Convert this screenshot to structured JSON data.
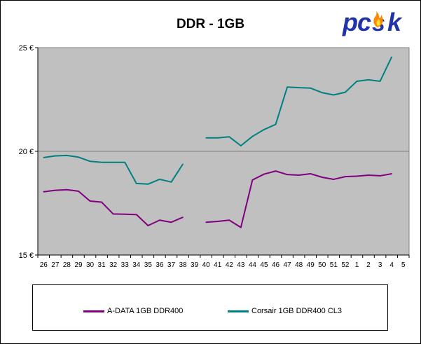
{
  "chart_data": {
    "type": "line",
    "title": "DDR - 1GB",
    "xlabel": "",
    "ylabel": "",
    "categories": [
      "26",
      "27",
      "28",
      "29",
      "30",
      "31",
      "32",
      "33",
      "34",
      "35",
      "36",
      "37",
      "38",
      "39",
      "40",
      "41",
      "42",
      "43",
      "44",
      "45",
      "46",
      "47",
      "48",
      "49",
      "50",
      "51",
      "52",
      "1",
      "2",
      "3",
      "4",
      "5"
    ],
    "yticks": [
      "15 €",
      "20 €",
      "25 €"
    ],
    "ytick_values": [
      15,
      20,
      25
    ],
    "ylim": [
      15,
      25
    ],
    "grid": "horizontal major",
    "legend_position": "bottom",
    "series": [
      {
        "name": "A-DATA 1GB DDR400",
        "color": "#800080",
        "values": [
          18.05,
          18.12,
          18.15,
          18.08,
          17.6,
          17.55,
          16.98,
          16.97,
          16.95,
          16.42,
          16.68,
          16.58,
          16.82,
          null,
          16.58,
          16.62,
          16.68,
          16.33,
          18.62,
          18.9,
          19.05,
          18.88,
          18.85,
          18.92,
          18.75,
          18.65,
          18.78,
          18.8,
          18.85,
          18.82,
          18.92,
          null
        ]
      },
      {
        "name": "Corsair 1GB DDR400 CL3",
        "color": "#008080",
        "values": [
          19.7,
          19.78,
          19.8,
          19.72,
          19.52,
          19.47,
          19.47,
          19.47,
          18.45,
          18.42,
          18.65,
          18.52,
          19.38,
          null,
          20.65,
          20.65,
          20.7,
          20.27,
          20.72,
          21.05,
          21.3,
          23.1,
          23.07,
          23.05,
          22.83,
          22.72,
          22.85,
          23.38,
          23.45,
          23.38,
          24.55,
          null
        ]
      }
    ]
  },
  "logo": {
    "text": "pcsk",
    "color": "#2233aa",
    "flame_color": "#ff8800"
  },
  "colors": {
    "plot_bg": "#c0c0c0",
    "grid": "#808080"
  }
}
